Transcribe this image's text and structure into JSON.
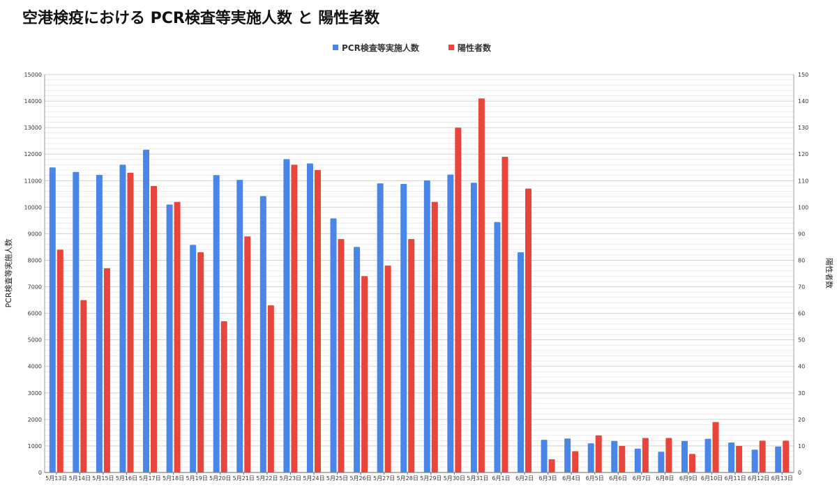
{
  "title": "空港検疫における PCR検査等実施人数 と 陽性者数",
  "chart_data": {
    "type": "bar",
    "title": "空港検疫における PCR検査等実施人数 と 陽性者数",
    "categories": [
      "5月13日",
      "5月14日",
      "5月15日",
      "5月16日",
      "5月17日",
      "5月18日",
      "5月19日",
      "5月20日",
      "5月21日",
      "5月22日",
      "5月23日",
      "5月24日",
      "5月25日",
      "5月26日",
      "5月27日",
      "5月28日",
      "5月29日",
      "5月30日",
      "5月31日",
      "6月1日",
      "6月2日",
      "6月3日",
      "6月4日",
      "6月5日",
      "6月6日",
      "6月7日",
      "6月8日",
      "6月9日",
      "6月10日",
      "6月11日",
      "6月12日",
      "6月13日"
    ],
    "series": [
      {
        "name": "PCR検査等実施人数",
        "axis": "left",
        "color": "#4a86e8",
        "values": [
          11500,
          11330,
          11220,
          11600,
          12170,
          10100,
          8580,
          11210,
          11030,
          10420,
          11810,
          11650,
          9580,
          8500,
          10900,
          10880,
          11010,
          11230,
          10920,
          9440,
          8300,
          1230,
          1280,
          1100,
          1190,
          900,
          780,
          1190,
          1270,
          1130,
          860,
          980
        ]
      },
      {
        "name": "陽性者数",
        "axis": "right",
        "color": "#e8453c",
        "values": [
          84,
          65,
          77,
          113,
          108,
          102,
          83,
          57,
          89,
          63,
          116,
          114,
          88,
          74,
          78,
          88,
          102,
          130,
          141,
          119,
          107,
          5,
          8,
          14,
          10,
          13,
          13,
          7,
          19,
          10,
          12,
          12
        ]
      }
    ],
    "ylabel": "PCR検査等実施人数",
    "y2label": "陽性者数",
    "ylim": [
      0,
      15000
    ],
    "y2lim": [
      0,
      150
    ],
    "yticks": [
      0,
      1000,
      2000,
      3000,
      4000,
      5000,
      6000,
      7000,
      8000,
      9000,
      10000,
      11000,
      12000,
      13000,
      14000,
      15000
    ],
    "y2ticks": [
      0,
      10,
      20,
      30,
      40,
      50,
      60,
      70,
      80,
      90,
      100,
      110,
      120,
      130,
      140,
      150
    ],
    "grid": true,
    "legend": "top-center"
  }
}
